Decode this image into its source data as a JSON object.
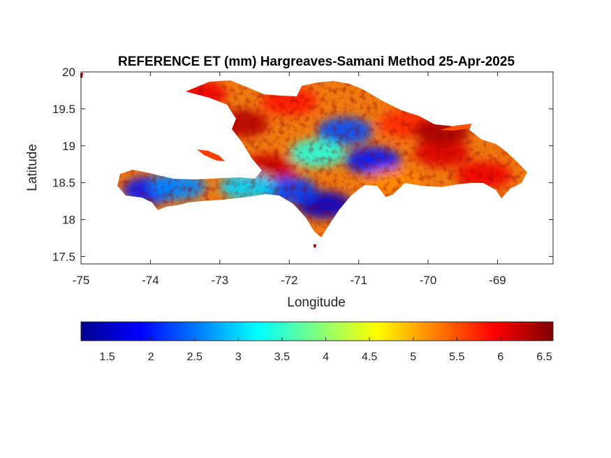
{
  "chart_data": {
    "type": "heatmap",
    "title": "REFERENCE ET (mm) Hargreaves-Samani Method  25-Apr-2025",
    "xlabel": "Longitude",
    "ylabel": "Latitude",
    "xlim": [
      -75,
      -68.2
    ],
    "ylim": [
      17.4,
      20
    ],
    "xticks": [
      -75,
      -74,
      -73,
      -72,
      -71,
      -70,
      -69
    ],
    "yticks": [
      17.5,
      18,
      18.5,
      19,
      19.5,
      20
    ],
    "colorbar": {
      "colormap": "jet",
      "range": [
        1.2,
        6.6
      ],
      "ticks": [
        1.5,
        2,
        2.5,
        3,
        3.5,
        4,
        4.5,
        5,
        5.5,
        6,
        6.5
      ],
      "placement": "bottom"
    },
    "regions": [
      {
        "lon": -73.3,
        "lat": 19.7,
        "value": 6.0
      },
      {
        "lon": -72.7,
        "lat": 19.3,
        "value": 6.3
      },
      {
        "lon": -72.3,
        "lat": 18.7,
        "value": 6.2
      },
      {
        "lon": -72.0,
        "lat": 19.6,
        "value": 5.8
      },
      {
        "lon": -71.2,
        "lat": 19.2,
        "value": 2.3
      },
      {
        "lon": -70.8,
        "lat": 18.8,
        "value": 2.0
      },
      {
        "lon": -71.6,
        "lat": 18.9,
        "value": 3.4
      },
      {
        "lon": -71.5,
        "lat": 18.2,
        "value": 1.6
      },
      {
        "lon": -72.0,
        "lat": 18.4,
        "value": 2.2
      },
      {
        "lon": -72.6,
        "lat": 18.45,
        "value": 3.0
      },
      {
        "lon": -74.0,
        "lat": 18.4,
        "value": 2.0
      },
      {
        "lon": -73.6,
        "lat": 18.45,
        "value": 2.6
      },
      {
        "lon": -70.3,
        "lat": 19.3,
        "value": 5.7
      },
      {
        "lon": -69.8,
        "lat": 18.9,
        "value": 6.1
      },
      {
        "lon": -69.2,
        "lat": 18.6,
        "value": 6.0
      },
      {
        "lon": -70.5,
        "lat": 18.5,
        "value": 5.2
      },
      {
        "lon": -69.8,
        "lat": 19.2,
        "value": 6.4
      }
    ]
  }
}
